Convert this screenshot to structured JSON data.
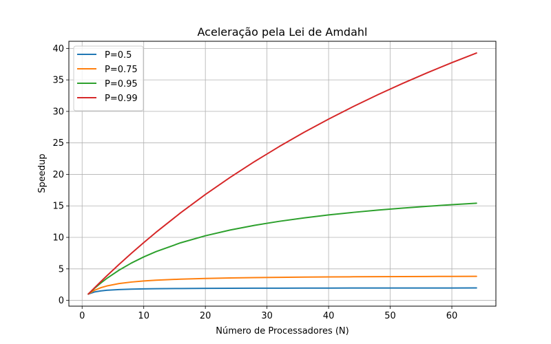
{
  "chart_data": {
    "type": "line",
    "title": "Aceleração pela Lei de Amdahl",
    "xlabel": "Número de Processadores (N)",
    "ylabel": "Speedup",
    "xlim": [
      -2.15,
      67.15
    ],
    "ylim": [
      -0.92,
      41.13
    ],
    "xticks": [
      0,
      10,
      20,
      30,
      40,
      50,
      60
    ],
    "yticks": [
      0,
      5,
      10,
      15,
      20,
      25,
      30,
      35,
      40
    ],
    "grid": true,
    "legend_position": "top-left",
    "x_range": [
      1,
      64
    ],
    "series": [
      {
        "name": "P=0.5",
        "color": "#1f77b4",
        "x": [
          1,
          2,
          3,
          4,
          6,
          8,
          10,
          12,
          16,
          20,
          24,
          28,
          32,
          36,
          40,
          44,
          48,
          52,
          56,
          60,
          64
        ],
        "y": [
          1.0,
          1.333,
          1.5,
          1.6,
          1.714,
          1.778,
          1.818,
          1.846,
          1.882,
          1.905,
          1.92,
          1.931,
          1.939,
          1.946,
          1.951,
          1.956,
          1.959,
          1.962,
          1.965,
          1.967,
          1.969
        ]
      },
      {
        "name": "P=0.75",
        "color": "#ff7f0e",
        "x": [
          1,
          2,
          3,
          4,
          6,
          8,
          10,
          12,
          16,
          20,
          24,
          28,
          32,
          36,
          40,
          44,
          48,
          52,
          56,
          60,
          64
        ],
        "y": [
          1.0,
          1.6,
          2.0,
          2.286,
          2.667,
          2.909,
          3.077,
          3.2,
          3.368,
          3.478,
          3.556,
          3.613,
          3.657,
          3.692,
          3.721,
          3.745,
          3.765,
          3.782,
          3.796,
          3.81,
          3.821
        ]
      },
      {
        "name": "P=0.95",
        "color": "#2ca02c",
        "x": [
          1,
          2,
          3,
          4,
          6,
          8,
          10,
          12,
          16,
          20,
          24,
          28,
          32,
          36,
          40,
          44,
          48,
          52,
          56,
          60,
          64
        ],
        "y": [
          1.0,
          1.905,
          2.727,
          3.478,
          4.8,
          5.926,
          6.897,
          7.742,
          9.143,
          10.256,
          11.163,
          11.915,
          12.549,
          13.091,
          13.559,
          13.968,
          14.328,
          14.648,
          14.933,
          15.19,
          15.422
        ]
      },
      {
        "name": "P=0.99",
        "color": "#d62728",
        "x": [
          1,
          2,
          3,
          4,
          6,
          8,
          10,
          12,
          16,
          20,
          24,
          28,
          32,
          36,
          40,
          44,
          48,
          52,
          56,
          60,
          64
        ],
        "y": [
          1.0,
          1.98,
          2.941,
          3.883,
          5.714,
          7.477,
          9.174,
          10.811,
          13.913,
          16.807,
          19.512,
          22.047,
          24.427,
          26.667,
          28.777,
          30.769,
          32.653,
          34.437,
          36.13,
          37.736,
          39.264
        ]
      }
    ]
  }
}
